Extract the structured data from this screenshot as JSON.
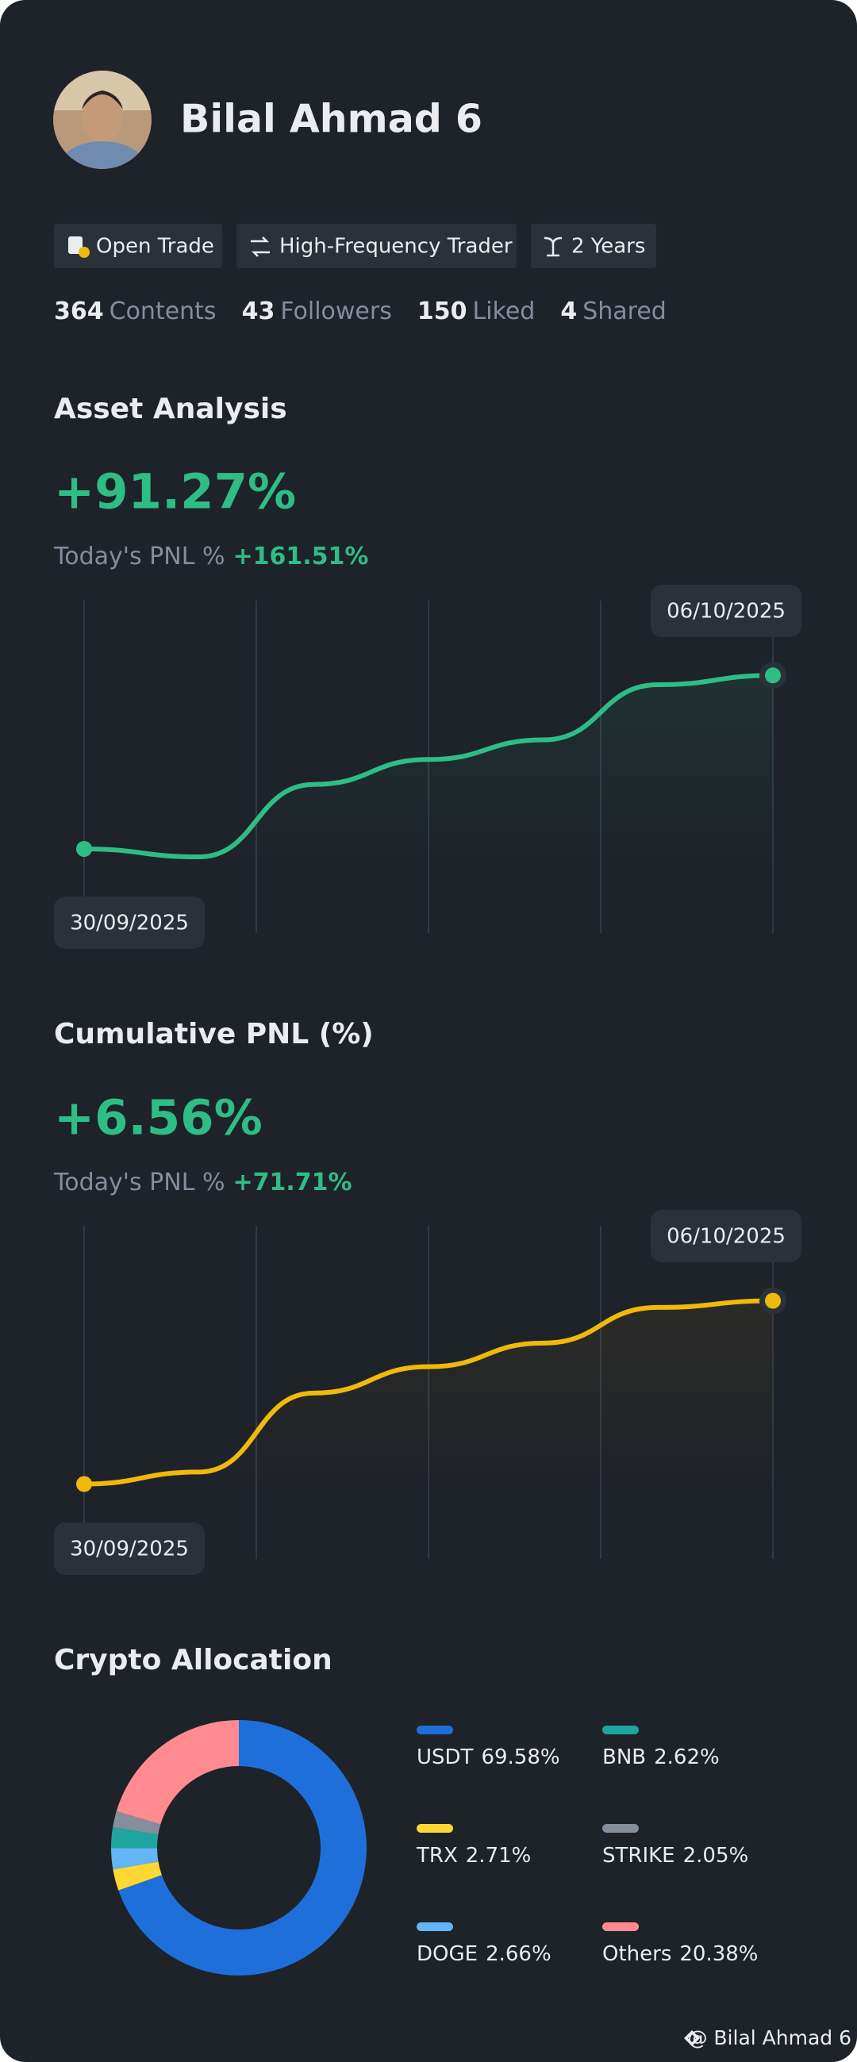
{
  "profile": {
    "name": "Bilal Ahmad 6",
    "tags": [
      "Open Trade",
      "High-Frequency Trader",
      "2 Years"
    ],
    "stats": [
      {
        "value": 364,
        "label": "Contents"
      },
      {
        "value": 43,
        "label": "Followers"
      },
      {
        "value": 150,
        "label": "Liked"
      },
      {
        "value": 4,
        "label": "Shared"
      }
    ]
  },
  "chart_data": [
    {
      "type": "line",
      "title": "Asset Analysis",
      "headline": "+91.27%",
      "today_label": "Today's PNL %",
      "today_value": "+161.51%",
      "categories": [
        "30/09/2025",
        null,
        null,
        null,
        null,
        null,
        "06/10/2025"
      ],
      "values": [
        25.3,
        22.9,
        44.7,
        52.2,
        58.1,
        74.7,
        77.5
      ],
      "color": "#2ebd85",
      "ylim": [
        0,
        100
      ]
    },
    {
      "type": "line",
      "title": "Cumulative PNL (%)",
      "headline": "+6.56%",
      "today_label": "Today's PNL %",
      "today_value": "+71.71%",
      "categories": [
        "30/09/2025",
        null,
        null,
        null,
        null,
        null,
        "06/10/2025"
      ],
      "values": [
        22.5,
        26.1,
        49.8,
        57.7,
        64.8,
        75.5,
        77.5
      ],
      "color": "#f0b90b",
      "ylim": [
        0,
        100
      ]
    },
    {
      "type": "pie",
      "title": "Crypto Allocation",
      "categories": [
        "USDT",
        "TRX",
        "DOGE",
        "BNB",
        "STRIKE",
        "Others"
      ],
      "values": [
        69.58,
        2.71,
        2.66,
        2.62,
        2.05,
        20.38
      ],
      "value_labels": [
        "69.58%",
        "2.71%",
        "2.66%",
        "2.62%",
        "2.05%",
        "20.38%"
      ],
      "colors": [
        "#1e6fd9",
        "#fdd835",
        "#64b5f6",
        "#1fa5a0",
        "#848e9c",
        "#ff8a8f"
      ]
    }
  ],
  "footer": {
    "watermark": "@ Bilal Ahmad 6"
  }
}
